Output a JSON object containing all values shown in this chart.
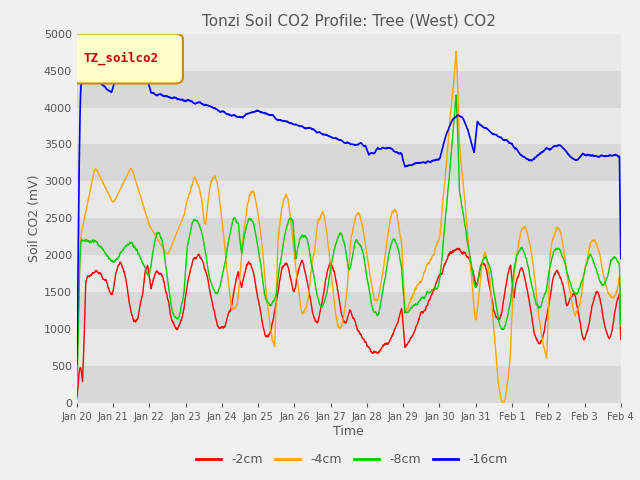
{
  "title": "Tonzi Soil CO2 Profile: Tree (West) CO2",
  "xlabel": "Time",
  "ylabel": "Soil CO2 (mV)",
  "ylim": [
    0,
    5000
  ],
  "yticks": [
    0,
    500,
    1000,
    1500,
    2000,
    2500,
    3000,
    3500,
    4000,
    4500,
    5000
  ],
  "legend_label": "TZ_soilco2",
  "series_labels": [
    "-2cm",
    "-4cm",
    "-8cm",
    "-16cm"
  ],
  "series_colors": [
    "#ff0000",
    "#ffa500",
    "#00cc00",
    "#0000ff"
  ],
  "plot_bg_color": "#e8e8e8",
  "strip_color": "#d8d8d8",
  "fig_bg_color": "#f0f0f0",
  "tick_labels": [
    "Jan 20",
    "Jan 21",
    "Jan 22",
    "Jan 23",
    "Jan 24",
    "Jan 25",
    "Jan 26",
    "Jan 27",
    "Jan 28",
    "Jan 29",
    "Jan 30",
    "Jan 31",
    "Feb 1",
    "Feb 2",
    "Feb 3",
    "Feb 4"
  ],
  "title_fontsize": 11,
  "axis_label_fontsize": 9,
  "tick_fontsize": 8
}
